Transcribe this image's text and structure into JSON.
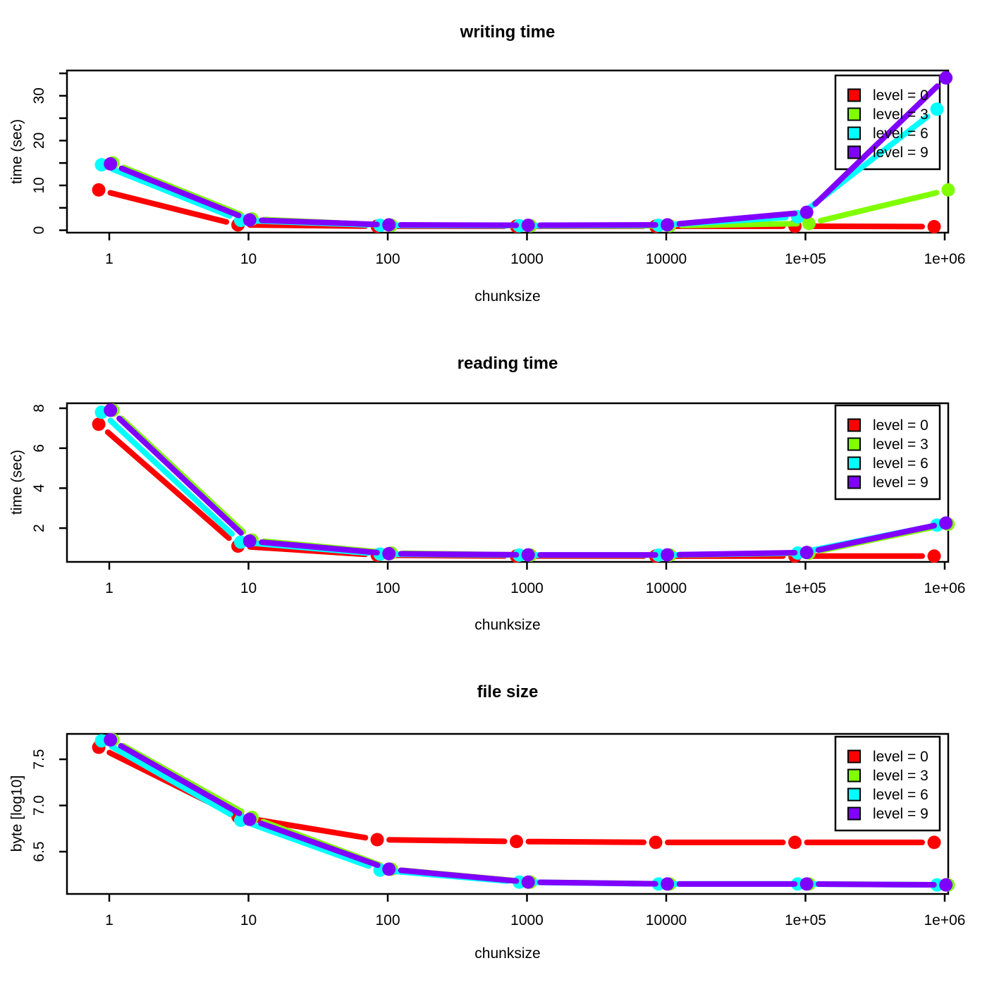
{
  "figure": {
    "background": "#ffffff",
    "axis_color": "#000000",
    "legend": {
      "position": "top-right",
      "border_color": "#000000",
      "background": "transparent",
      "entries": [
        {
          "label": "level = 0",
          "color": "#FF0000"
        },
        {
          "label": "level = 3",
          "color": "#80FF00"
        },
        {
          "label": "level = 6",
          "color": "#00FFFF"
        },
        {
          "label": "level = 9",
          "color": "#8000FF"
        }
      ]
    }
  },
  "chart_data": [
    {
      "type": "line",
      "title": "writing time",
      "xlabel": "chunksize",
      "ylabel": "time (sec)",
      "x_scale": "log10",
      "x": [
        1,
        10,
        100,
        1000,
        10000,
        100000,
        1000000
      ],
      "x_tick_labels": [
        "1",
        "10",
        "100",
        "1000",
        "10000",
        "1e+05",
        "1e+06"
      ],
      "ylim": [
        -0.54,
        35.64
      ],
      "y_ticks": [
        0,
        5,
        10,
        15,
        20,
        25,
        30,
        35
      ],
      "y_tick_labels": [
        "0",
        "",
        "10",
        "",
        "20",
        "",
        "30",
        ""
      ],
      "line_type": "b",
      "series": [
        {
          "name": "level = 0",
          "color": "#FF0000",
          "x_jitter_factor": 0.84,
          "values": [
            9.0,
            1.2,
            0.9,
            0.9,
            0.9,
            0.9,
            0.8
          ]
        },
        {
          "name": "level = 3",
          "color": "#80FF00",
          "x_jitter_factor": 1.06,
          "values": [
            15.0,
            2.5,
            1.1,
            1.0,
            1.0,
            1.5,
            9.0
          ]
        },
        {
          "name": "level = 6",
          "color": "#00FFFF",
          "x_jitter_factor": 0.88,
          "values": [
            14.6,
            2.2,
            1.1,
            1.0,
            1.1,
            3.0,
            27.0
          ]
        },
        {
          "name": "level = 9",
          "color": "#8000FF",
          "x_jitter_factor": 1.02,
          "values": [
            14.8,
            2.3,
            1.2,
            1.1,
            1.2,
            4.0,
            34.0
          ]
        }
      ]
    },
    {
      "type": "line",
      "title": "reading time",
      "xlabel": "chunksize",
      "ylabel": "time (sec)",
      "x_scale": "log10",
      "x": [
        1,
        10,
        100,
        1000,
        10000,
        100000,
        1000000
      ],
      "x_tick_labels": [
        "1",
        "10",
        "100",
        "1000",
        "10000",
        "1e+05",
        "1e+06"
      ],
      "ylim": [
        0.31,
        8.25
      ],
      "y_ticks": [
        2,
        4,
        6,
        8
      ],
      "y_tick_labels": [
        "2",
        "4",
        "6",
        "8"
      ],
      "line_type": "b",
      "series": [
        {
          "name": "level = 0",
          "color": "#FF0000",
          "x_jitter_factor": 0.84,
          "values": [
            7.2,
            1.1,
            0.65,
            0.6,
            0.6,
            0.6,
            0.6
          ]
        },
        {
          "name": "level = 3",
          "color": "#80FF00",
          "x_jitter_factor": 1.06,
          "values": [
            7.9,
            1.4,
            0.75,
            0.65,
            0.65,
            0.75,
            2.2
          ]
        },
        {
          "name": "level = 6",
          "color": "#00FFFF",
          "x_jitter_factor": 0.88,
          "values": [
            7.8,
            1.3,
            0.7,
            0.65,
            0.65,
            0.75,
            2.15
          ]
        },
        {
          "name": "level = 9",
          "color": "#8000FF",
          "x_jitter_factor": 1.02,
          "values": [
            7.9,
            1.35,
            0.72,
            0.66,
            0.66,
            0.78,
            2.25
          ]
        }
      ]
    },
    {
      "type": "line",
      "title": "file size",
      "xlabel": "chunksize",
      "ylabel": "byte [log10]",
      "x_scale": "log10",
      "x": [
        1,
        10,
        100,
        1000,
        10000,
        100000,
        1000000
      ],
      "x_tick_labels": [
        "1",
        "10",
        "100",
        "1000",
        "10000",
        "1e+05",
        "1e+06"
      ],
      "ylim": [
        6.042,
        7.775
      ],
      "y_ticks": [
        6.5,
        7.0,
        7.5
      ],
      "y_tick_labels": [
        "6.5",
        "7.0",
        "7.5"
      ],
      "line_type": "b",
      "series": [
        {
          "name": "level = 0",
          "color": "#FF0000",
          "x_jitter_factor": 0.84,
          "values": [
            7.63,
            6.88,
            6.63,
            6.61,
            6.6,
            6.6,
            6.6
          ]
        },
        {
          "name": "level = 3",
          "color": "#80FF00",
          "x_jitter_factor": 1.06,
          "values": [
            7.71,
            6.87,
            6.31,
            6.17,
            6.15,
            6.15,
            6.14
          ]
        },
        {
          "name": "level = 6",
          "color": "#00FFFF",
          "x_jitter_factor": 0.88,
          "values": [
            7.7,
            6.84,
            6.3,
            6.17,
            6.15,
            6.15,
            6.14
          ]
        },
        {
          "name": "level = 9",
          "color": "#8000FF",
          "x_jitter_factor": 1.02,
          "values": [
            7.71,
            6.85,
            6.31,
            6.17,
            6.15,
            6.15,
            6.14
          ]
        }
      ]
    }
  ]
}
